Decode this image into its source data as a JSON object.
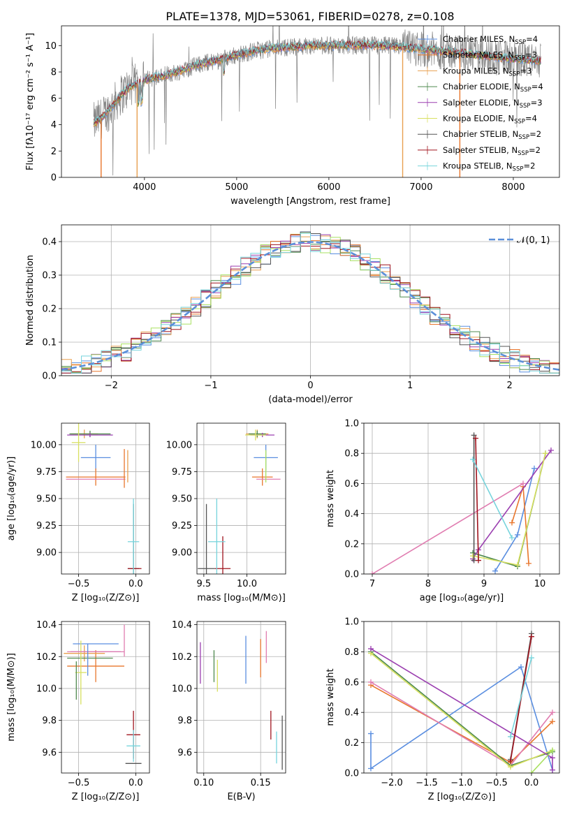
{
  "figure_title": "PLATE=1378, MJD=53061, FIBERID=0278, z=0.108",
  "colors": {
    "chabrier_miles": "#5a8ee0",
    "salpeter_miles": "#e8762c",
    "kroupa_miles": "#e8a050",
    "chabrier_elodie": "#4f8a4f",
    "salpeter_elodie": "#9b3fb0",
    "kroupa_elodie": "#d8e060",
    "chabrier_stelib": "#555555",
    "salpeter_stelib": "#a0141e",
    "kroupa_stelib": "#76d4dc",
    "gauss": "#5b8fd9",
    "extra": "#e07cb0",
    "lime": "#a8e060"
  },
  "chart_data": [
    {
      "id": "spectrum",
      "type": "line",
      "xlabel": "wavelength [Angstrom, rest frame]",
      "ylabel": "Flux [fλ10⁻¹⁷ erg cm⁻² s⁻¹ A⁻¹]",
      "xlim": [
        3100,
        8500
      ],
      "ylim": [
        0,
        11.5
      ],
      "xticks": [
        "4000",
        "5000",
        "6000",
        "7000",
        "8000"
      ],
      "yticks": [
        "0",
        "2",
        "4",
        "6",
        "8",
        "10"
      ],
      "legend": [
        {
          "text": "Chabrier MILES, N",
          "sub": "SSP",
          "val": "=4",
          "color": "chabrier_miles"
        },
        {
          "text": "Salpeter MILES, N",
          "sub": "SSP",
          "val": "=3",
          "color": "salpeter_miles"
        },
        {
          "text": "Kroupa MILES, N",
          "sub": "SSP",
          "val": "=3",
          "color": "kroupa_miles"
        },
        {
          "text": "Chabrier ELODIE, N",
          "sub": "SSP",
          "val": "=4",
          "color": "chabrier_elodie"
        },
        {
          "text": "Salpeter ELODIE, N",
          "sub": "SSP",
          "val": "=3",
          "color": "salpeter_elodie"
        },
        {
          "text": "Kroupa ELODIE, N",
          "sub": "SSP",
          "val": "=4",
          "color": "kroupa_elodie"
        },
        {
          "text": "Chabrier STELIB, N",
          "sub": "SSP",
          "val": "=2",
          "color": "chabrier_stelib"
        },
        {
          "text": "Salpeter STELIB, N",
          "sub": "SSP",
          "val": "=2",
          "color": "salpeter_stelib"
        },
        {
          "text": "Kroupa STELIB, N",
          "sub": "SSP",
          "val": "=2",
          "color": "kroupa_stelib"
        }
      ],
      "continuum": [
        [
          3450,
          4.1
        ],
        [
          3550,
          4.6
        ],
        [
          3650,
          5.4
        ],
        [
          3750,
          6.3
        ],
        [
          3850,
          6.9
        ],
        [
          3950,
          7.2
        ],
        [
          4050,
          7.5
        ],
        [
          4200,
          7.7
        ],
        [
          4400,
          8.1
        ],
        [
          4600,
          8.6
        ],
        [
          4800,
          8.9
        ],
        [
          5000,
          9.3
        ],
        [
          5200,
          9.6
        ],
        [
          5400,
          9.8
        ],
        [
          5600,
          9.9
        ],
        [
          5800,
          10.0
        ],
        [
          6000,
          10.0
        ],
        [
          6200,
          10.0
        ],
        [
          6400,
          10.05
        ],
        [
          6600,
          10.0
        ],
        [
          6800,
          9.9
        ],
        [
          7000,
          9.75
        ],
        [
          7200,
          9.6
        ],
        [
          7400,
          9.5
        ],
        [
          7600,
          9.3
        ],
        [
          7800,
          9.15
        ],
        [
          8000,
          9.0
        ],
        [
          8200,
          8.9
        ],
        [
          8300,
          8.85
        ]
      ]
    },
    {
      "id": "residuals",
      "type": "line",
      "xlabel": "(data-model)/error",
      "ylabel": "Normed distribution",
      "xlim": [
        -2.5,
        2.5
      ],
      "ylim": [
        0,
        0.45
      ],
      "xticks": [
        "−2",
        "−1",
        "0",
        "1",
        "2"
      ],
      "yticks": [
        "0.0",
        "0.1",
        "0.2",
        "0.3",
        "0.4"
      ],
      "legend_label": "𝒩(0, 1)",
      "bin_width": 0.1
    },
    {
      "id": "age_vs_Z",
      "type": "scatter",
      "xlabel": "Z [log₁₀(Z/Z⊙)]",
      "ylabel": "age  [log₁₀(age/yr)]",
      "xlim": [
        -0.65,
        0.12
      ],
      "ylim": [
        8.8,
        10.2
      ],
      "xticks": [
        "−0.5",
        "0.0"
      ],
      "yticks": [
        "9.00",
        "9.25",
        "9.50",
        "9.75",
        "10.00"
      ],
      "points": [
        {
          "x": -0.35,
          "y": 9.88,
          "xerr": 0.13,
          "yerr": 0.12,
          "color": "chabrier_miles"
        },
        {
          "x": -0.35,
          "y": 9.7,
          "xerr": 0.26,
          "yerr": 0.08,
          "color": "salpeter_miles"
        },
        {
          "x": -0.45,
          "y": 10.1,
          "xerr": 0.12,
          "yerr": 0.04,
          "color": "kroupa_miles"
        },
        {
          "x": -0.4,
          "y": 10.1,
          "xerr": 0.18,
          "yerr": 0.03,
          "color": "chabrier_elodie"
        },
        {
          "x": -0.4,
          "y": 10.09,
          "xerr": 0.2,
          "yerr": 0.02,
          "color": "salpeter_elodie"
        },
        {
          "x": -0.5,
          "y": 10.02,
          "xerr": 0.06,
          "yerr": 0.18,
          "color": "kroupa_elodie"
        },
        {
          "x": -0.02,
          "y": 8.85,
          "xerr": 0.05,
          "yerr": 0.6,
          "color": "chabrier_stelib"
        },
        {
          "x": -0.01,
          "y": 8.85,
          "xerr": 0.06,
          "yerr": 0.0,
          "color": "salpeter_stelib"
        },
        {
          "x": -0.02,
          "y": 9.1,
          "xerr": 0.05,
          "yerr": 0.4,
          "color": "kroupa_stelib"
        },
        {
          "x": -0.35,
          "y": 9.68,
          "xerr": 0.26,
          "yerr": 0.0,
          "color": "extra"
        },
        {
          "x": -0.1,
          "y": 9.78,
          "xerr": 0.0,
          "yerr": 0.18,
          "color": "salpeter_miles"
        },
        {
          "x": -0.07,
          "y": 9.8,
          "xerr": 0.0,
          "yerr": 0.15,
          "color": "kroupa_miles"
        }
      ]
    },
    {
      "id": "age_vs_mass",
      "type": "scatter",
      "xlabel": "mass [log₁₀(M/M⊙)]",
      "ylabel": "",
      "xlim": [
        9.42,
        10.45
      ],
      "ylim": [
        8.8,
        10.2
      ],
      "xticks": [
        "9.5",
        "10.0"
      ],
      "yticks": [
        "9.00",
        "9.25",
        "9.50",
        "9.75",
        "10.00"
      ],
      "points": [
        {
          "x": 10.22,
          "y": 9.88,
          "xerr": 0.14,
          "yerr": 0.12,
          "color": "chabrier_miles"
        },
        {
          "x": 10.18,
          "y": 9.7,
          "xerr": 0.12,
          "yerr": 0.08,
          "color": "salpeter_miles"
        },
        {
          "x": 10.12,
          "y": 10.1,
          "xerr": 0.13,
          "yerr": 0.04,
          "color": "kroupa_miles"
        },
        {
          "x": 10.12,
          "y": 10.1,
          "xerr": 0.1,
          "yerr": 0.03,
          "color": "chabrier_elodie"
        },
        {
          "x": 10.18,
          "y": 10.09,
          "xerr": 0.14,
          "yerr": 0.02,
          "color": "salpeter_elodie"
        },
        {
          "x": 10.1,
          "y": 10.09,
          "xerr": 0.12,
          "yerr": 0.05,
          "color": "kroupa_elodie"
        },
        {
          "x": 9.53,
          "y": 8.85,
          "xerr": 0.1,
          "yerr": 0.6,
          "color": "chabrier_stelib"
        },
        {
          "x": 9.72,
          "y": 8.85,
          "xerr": 0.09,
          "yerr": 0.3,
          "color": "salpeter_stelib"
        },
        {
          "x": 9.65,
          "y": 9.1,
          "xerr": 0.1,
          "yerr": 0.4,
          "color": "kroupa_stelib"
        },
        {
          "x": 10.25,
          "y": 9.68,
          "xerr": 0.14,
          "yerr": 0.0,
          "color": "extra"
        },
        {
          "x": 10.22,
          "y": 9.8,
          "xerr": 0.0,
          "yerr": 0.15,
          "color": "lime"
        }
      ]
    },
    {
      "id": "mass_weight_vs_age",
      "type": "line",
      "xlabel": "age  [log₁₀(age/yr)]",
      "ylabel": "mass weight",
      "xlim": [
        6.85,
        10.35
      ],
      "ylim": [
        0,
        1
      ],
      "xticks": [
        "7",
        "8",
        "9",
        "10"
      ],
      "yticks": [
        "0.0",
        "0.2",
        "0.4",
        "0.6",
        "0.8",
        "1.0"
      ],
      "series": [
        {
          "color": "chabrier_miles",
          "pts": [
            [
              9.2,
              0.02
            ],
            [
              9.6,
              0.26
            ],
            [
              9.9,
              0.7
            ]
          ]
        },
        {
          "color": "salpeter_miles",
          "pts": [
            [
              9.5,
              0.34
            ],
            [
              9.7,
              0.58
            ],
            [
              9.8,
              0.07
            ]
          ]
        },
        {
          "color": "extra",
          "pts": [
            [
              7.0,
              0.0
            ],
            [
              9.7,
              0.6
            ]
          ]
        },
        {
          "color": "chabrier_elodie",
          "pts": [
            [
              8.8,
              0.14
            ],
            [
              9.6,
              0.05
            ],
            [
              10.1,
              0.8
            ]
          ]
        },
        {
          "color": "salpeter_elodie",
          "pts": [
            [
              8.8,
              0.1
            ],
            [
              8.9,
              0.16
            ],
            [
              10.2,
              0.82
            ]
          ]
        },
        {
          "color": "kroupa_elodie",
          "pts": [
            [
              8.8,
              0.12
            ],
            [
              9.6,
              0.06
            ],
            [
              10.1,
              0.8
            ]
          ]
        },
        {
          "color": "chabrier_stelib",
          "pts": [
            [
              8.82,
              0.09
            ],
            [
              8.82,
              0.92
            ]
          ]
        },
        {
          "color": "salpeter_stelib",
          "pts": [
            [
              8.9,
              0.09
            ],
            [
              8.85,
              0.9
            ]
          ]
        },
        {
          "color": "kroupa_stelib",
          "pts": [
            [
              8.8,
              0.76
            ],
            [
              9.5,
              0.24
            ]
          ]
        }
      ]
    },
    {
      "id": "mass_vs_Z",
      "type": "scatter",
      "xlabel": "Z [log₁₀(Z/Z⊙)]",
      "ylabel": "mass [log₁₀(M/M⊙)]",
      "xlim": [
        -0.65,
        0.12
      ],
      "ylim": [
        9.47,
        10.42
      ],
      "xticks": [
        "−0.5",
        "0.0"
      ],
      "yticks": [
        "9.6",
        "9.8",
        "10.0",
        "10.2",
        "10.4"
      ],
      "points": [
        {
          "x": -0.35,
          "y": 10.28,
          "xerr": 0.2,
          "yerr": 0.0,
          "color": "chabrier_miles"
        },
        {
          "x": -0.35,
          "y": 10.14,
          "xerr": 0.25,
          "yerr": 0.1,
          "color": "salpeter_miles"
        },
        {
          "x": -0.45,
          "y": 10.22,
          "xerr": 0.18,
          "yerr": 0.05,
          "color": "kroupa_miles"
        },
        {
          "x": -0.4,
          "y": 10.19,
          "xerr": 0.2,
          "yerr": 0.0,
          "color": "chabrier_elodie"
        },
        {
          "x": -0.35,
          "y": 10.23,
          "xerr": 0.22,
          "yerr": 0.0,
          "color": "salpeter_elodie"
        },
        {
          "x": -0.48,
          "y": 10.1,
          "xerr": 0.05,
          "yerr": 0.2,
          "color": "kroupa_elodie"
        },
        {
          "x": -0.02,
          "y": 9.53,
          "xerr": 0.07,
          "yerr": 0.0,
          "color": "chabrier_stelib"
        },
        {
          "x": -0.02,
          "y": 9.71,
          "xerr": 0.06,
          "yerr": 0.15,
          "color": "salpeter_stelib"
        },
        {
          "x": -0.02,
          "y": 9.64,
          "xerr": 0.06,
          "yerr": 0.1,
          "color": "kroupa_stelib"
        },
        {
          "x": -0.35,
          "y": 10.23,
          "xerr": 0.25,
          "yerr": 0.0,
          "color": "extra"
        },
        {
          "x": -0.42,
          "y": 10.18,
          "xerr": 0.0,
          "yerr": 0.1,
          "color": "chabrier_miles"
        },
        {
          "x": -0.52,
          "y": 10.05,
          "xerr": 0.0,
          "yerr": 0.12,
          "color": "chabrier_elodie"
        },
        {
          "x": -0.1,
          "y": 10.3,
          "xerr": 0.0,
          "yerr": 0.1,
          "color": "extra"
        }
      ]
    },
    {
      "id": "mass_vs_ebv",
      "type": "scatter",
      "xlabel": "E(B-V)",
      "ylabel": "",
      "xlim": [
        0.094,
        0.172
      ],
      "ylim": [
        9.47,
        10.42
      ],
      "xticks": [
        "0.10",
        "0.15"
      ],
      "yticks": [
        "9.6",
        "9.8",
        "10.0",
        "10.2",
        "10.4"
      ],
      "points": [
        {
          "x": 0.097,
          "y": 10.16,
          "xerr": 0,
          "yerr": 0.13,
          "color": "salpeter_elodie"
        },
        {
          "x": 0.109,
          "y": 10.14,
          "xerr": 0,
          "yerr": 0.1,
          "color": "chabrier_elodie"
        },
        {
          "x": 0.112,
          "y": 10.08,
          "xerr": 0,
          "yerr": 0.1,
          "color": "kroupa_elodie"
        },
        {
          "x": 0.137,
          "y": 10.18,
          "xerr": 0,
          "yerr": 0.15,
          "color": "chabrier_miles"
        },
        {
          "x": 0.15,
          "y": 10.19,
          "xerr": 0,
          "yerr": 0.12,
          "color": "salpeter_miles"
        },
        {
          "x": 0.155,
          "y": 10.26,
          "xerr": 0,
          "yerr": 0.1,
          "color": "extra"
        },
        {
          "x": 0.159,
          "y": 9.77,
          "xerr": 0,
          "yerr": 0.09,
          "color": "salpeter_stelib"
        },
        {
          "x": 0.164,
          "y": 9.63,
          "xerr": 0,
          "yerr": 0.1,
          "color": "kroupa_stelib"
        },
        {
          "x": 0.169,
          "y": 9.66,
          "xerr": 0,
          "yerr": 0.17,
          "color": "chabrier_stelib"
        }
      ]
    },
    {
      "id": "mass_weight_vs_Z",
      "type": "line",
      "xlabel": "Z [log₁₀(Z/Z⊙)]",
      "ylabel": "mass weight",
      "xlim": [
        -2.4,
        0.4
      ],
      "ylim": [
        0,
        1
      ],
      "xticks": [
        "−2.0",
        "−1.5",
        "−1.0",
        "−0.5",
        "0.0"
      ],
      "yticks": [
        "0.0",
        "0.2",
        "0.4",
        "0.6",
        "0.8",
        "1.0"
      ],
      "series": [
        {
          "color": "chabrier_miles",
          "pts": [
            [
              -2.3,
              0.26
            ],
            [
              -2.3,
              0.03
            ],
            [
              -0.15,
              0.7
            ],
            [
              0.3,
              0.02
            ]
          ]
        },
        {
          "color": "salpeter_miles",
          "pts": [
            [
              -2.3,
              0.58
            ],
            [
              -0.3,
              0.07
            ],
            [
              0.3,
              0.34
            ]
          ]
        },
        {
          "color": "extra",
          "pts": [
            [
              -2.3,
              0.6
            ],
            [
              -0.3,
              0.05
            ],
            [
              0.3,
              0.4
            ]
          ]
        },
        {
          "color": "chabrier_elodie",
          "pts": [
            [
              -2.3,
              0.8
            ],
            [
              -0.3,
              0.05
            ],
            [
              0.3,
              0.14
            ]
          ]
        },
        {
          "color": "kroupa_elodie",
          "pts": [
            [
              -2.3,
              0.79
            ],
            [
              -0.3,
              0.04
            ],
            [
              0.3,
              0.15
            ]
          ]
        },
        {
          "color": "salpeter_elodie",
          "pts": [
            [
              -2.3,
              0.82
            ],
            [
              0.3,
              0.1
            ],
            [
              0.3,
              0.02
            ]
          ]
        },
        {
          "color": "chabrier_stelib",
          "pts": [
            [
              -0.3,
              0.09
            ],
            [
              0.0,
              0.92
            ]
          ]
        },
        {
          "color": "salpeter_stelib",
          "pts": [
            [
              -0.3,
              0.08
            ],
            [
              0.0,
              0.9
            ]
          ]
        },
        {
          "color": "kroupa_stelib",
          "pts": [
            [
              0.0,
              0.76
            ],
            [
              -0.3,
              0.24
            ]
          ]
        },
        {
          "color": "lime",
          "pts": [
            [
              0.3,
              0.15
            ],
            [
              0.0,
              0.0
            ]
          ]
        }
      ]
    }
  ]
}
